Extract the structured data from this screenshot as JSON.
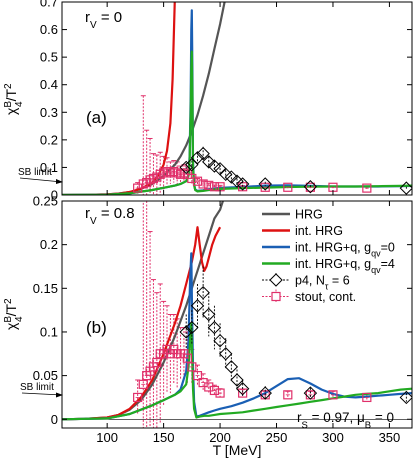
{
  "chart_data": [
    {
      "panel": "top",
      "type": "line",
      "tag": "(a)",
      "corner_label": {
        "main": "r",
        "sub": "V",
        "rest": " = 0"
      },
      "ylabel": {
        "main": "χ",
        "sub": "4",
        "sup": "B",
        "rest": "/T",
        "rest_sup": "2"
      },
      "ylim": [
        0,
        0.7
      ],
      "yticks": [
        "0",
        "0.1",
        "0.2",
        "0.3",
        "0.4",
        "0.5",
        "0.6",
        "0.7"
      ],
      "xlim": [
        60,
        370
      ],
      "sb_limit": {
        "label": "SB limit",
        "value": 0.0167
      },
      "series": [
        {
          "id": "hrg",
          "color": "#555555",
          "x": [
            60,
            80,
            100,
            110,
            120,
            130,
            140,
            150,
            160,
            165,
            170,
            175,
            180,
            185,
            190,
            195,
            200,
            205
          ],
          "y": [
            0,
            0.0005,
            0.002,
            0.005,
            0.011,
            0.022,
            0.04,
            0.07,
            0.11,
            0.14,
            0.18,
            0.23,
            0.29,
            0.36,
            0.44,
            0.53,
            0.62,
            0.72
          ]
        },
        {
          "id": "int-hrg",
          "color": "#dd1111",
          "x": [
            60,
            80,
            100,
            110,
            120,
            130,
            140,
            145,
            150,
            153,
            156,
            158,
            160
          ],
          "y": [
            0,
            0.0005,
            0.002,
            0.005,
            0.011,
            0.023,
            0.045,
            0.07,
            0.11,
            0.16,
            0.26,
            0.42,
            0.72
          ]
        },
        {
          "id": "int-hrg-q-0",
          "color": "#1a5fb4",
          "x": [
            60,
            100,
            120,
            140,
            150,
            160,
            165,
            170,
            172,
            173,
            174,
            174.5,
            175,
            175.5,
            176,
            177,
            178,
            180,
            185,
            190,
            200,
            220,
            240,
            260,
            280,
            300,
            320,
            340,
            360,
            370
          ],
          "y": [
            0,
            0.001,
            0.006,
            0.018,
            0.026,
            0.034,
            0.04,
            0.05,
            0.075,
            0.14,
            0.36,
            0.6,
            0.67,
            0.45,
            0.12,
            0.04,
            0.02,
            0.015,
            0.017,
            0.021,
            0.026,
            0.029,
            0.034,
            0.035,
            0.033,
            0.031,
            0.031,
            0.031,
            0.032,
            0.033
          ]
        },
        {
          "id": "int-hrg-q-4",
          "color": "#22aa22",
          "x": [
            60,
            100,
            120,
            140,
            150,
            160,
            165,
            170,
            172,
            173,
            174,
            174.5,
            175,
            175.5,
            176,
            177,
            178,
            180,
            185,
            190,
            200,
            220,
            240,
            260,
            280,
            300,
            320,
            340,
            360,
            370
          ],
          "y": [
            0,
            0.001,
            0.006,
            0.018,
            0.026,
            0.034,
            0.04,
            0.05,
            0.07,
            0.12,
            0.3,
            0.46,
            0.52,
            0.36,
            0.1,
            0.035,
            0.018,
            0.013,
            0.015,
            0.018,
            0.022,
            0.025,
            0.027,
            0.029,
            0.03,
            0.031,
            0.031,
            0.032,
            0.033,
            0.034
          ]
        }
      ],
      "p4": {
        "x": [
          170,
          175,
          180,
          185,
          190,
          195,
          200,
          205,
          210,
          215,
          220,
          240,
          280,
          365
        ],
        "y": [
          0.1,
          0.11,
          0.135,
          0.15,
          0.12,
          0.105,
          0.095,
          0.075,
          0.065,
          0.05,
          0.04,
          0.04,
          0.03,
          0.025
        ],
        "err": [
          0.015,
          0.015,
          0.02,
          0.025,
          0.02,
          0.02,
          0.015,
          0.015,
          0.012,
          0.01,
          0.01,
          0.008,
          0.006,
          0.005
        ]
      },
      "stout": {
        "x": [
          127,
          132,
          135,
          138,
          141,
          144,
          147,
          150,
          153,
          156,
          159,
          162,
          165,
          168,
          171,
          175,
          180,
          185,
          190,
          195,
          200,
          220,
          240,
          260,
          280,
          300,
          330
        ],
        "y": [
          0.025,
          0.04,
          0.045,
          0.055,
          0.06,
          0.065,
          0.075,
          0.08,
          0.085,
          0.08,
          0.085,
          0.08,
          0.075,
          0.08,
          0.075,
          0.06,
          0.05,
          0.04,
          0.035,
          0.03,
          0.03,
          0.03,
          0.028,
          0.028,
          0.028,
          0.028,
          0.025
        ],
        "err": [
          0.02,
          0.32,
          0.19,
          0.15,
          0.09,
          0.08,
          0.08,
          0.06,
          0.05,
          0.04,
          0.04,
          0.04,
          0.03,
          0.03,
          0.03,
          0.02,
          0.01,
          0.01,
          0.008,
          0.006,
          0.005,
          0.004,
          0.004,
          0.004,
          0.004,
          0.004,
          0.004
        ]
      }
    },
    {
      "panel": "bottom",
      "type": "line",
      "tag": "(b)",
      "corner_label": {
        "main": "r",
        "sub": "V",
        "rest": " = 0.8"
      },
      "ylabel": {
        "main": "χ",
        "sub": "4",
        "sup": "B",
        "rest": "/T",
        "rest_sup": "2"
      },
      "ylim": [
        -0.01,
        0.25
      ],
      "yticks": [
        "0",
        "0.05",
        "0.1",
        "0.15",
        "0.2",
        "0.25"
      ],
      "ytick_values": [
        0,
        0.05,
        0.1,
        0.15,
        0.2,
        0.25
      ],
      "xlim": [
        60,
        370
      ],
      "xticks": [
        "100",
        "150",
        "200",
        "250",
        "300",
        "350"
      ],
      "xtick_values": [
        100,
        150,
        200,
        250,
        300,
        350
      ],
      "xlabel": "T [MeV]",
      "sb_limit": {
        "label": "SB limit",
        "value": 0.0167
      },
      "note": {
        "rs": "r",
        "rs_sub": "S",
        "rs_rest": " = 0.97, ",
        "mu": "μ",
        "mu_sub": "B",
        "mu_rest": " = 0"
      },
      "legend": [
        {
          "key": "hrg",
          "label": "HRG",
          "style": "line",
          "color": "#555555"
        },
        {
          "key": "int-hrg",
          "label": "int. HRG",
          "style": "line",
          "color": "#dd1111"
        },
        {
          "key": "int-hrg-q-0",
          "label": "int. HRG+q, g",
          "sub": "qv",
          "rest": "=0",
          "style": "line",
          "color": "#1a5fb4"
        },
        {
          "key": "int-hrg-q-4",
          "label": "int. HRG+q, g",
          "sub": "qv",
          "rest": "=4",
          "style": "line",
          "color": "#22aa22"
        },
        {
          "key": "p4",
          "label": "p4, N",
          "sub": "τ",
          "rest": " = 6",
          "style": "diamond",
          "color": "#000000"
        },
        {
          "key": "stout",
          "label": "stout, cont.",
          "style": "square",
          "color": "#e0306a"
        }
      ],
      "series": [
        {
          "id": "hrg",
          "color": "#555555",
          "x": [
            60,
            80,
            100,
            110,
            120,
            130,
            140,
            150,
            160,
            170,
            175,
            180,
            185,
            190,
            195,
            200,
            205
          ],
          "y": [
            0,
            0.0005,
            0.002,
            0.005,
            0.011,
            0.022,
            0.04,
            0.065,
            0.095,
            0.13,
            0.15,
            0.17,
            0.19,
            0.21,
            0.23,
            0.24,
            0.26
          ]
        },
        {
          "id": "int-hrg",
          "color": "#dd1111",
          "x": [
            60,
            80,
            100,
            110,
            120,
            130,
            140,
            150,
            160,
            165,
            170,
            175,
            178,
            180,
            182,
            184,
            186,
            188,
            190,
            193,
            196,
            200
          ],
          "y": [
            0,
            0.0005,
            0.002,
            0.005,
            0.012,
            0.025,
            0.045,
            0.075,
            0.11,
            0.13,
            0.155,
            0.18,
            0.2,
            0.22,
            0.2,
            0.18,
            0.17,
            0.175,
            0.185,
            0.2,
            0.21,
            0.22
          ]
        },
        {
          "id": "int-hrg-q-0",
          "color": "#1a5fb4",
          "x": [
            60,
            100,
            120,
            140,
            150,
            160,
            165,
            170,
            172,
            173.5,
            174.5,
            175.2,
            176,
            177,
            179,
            182,
            186,
            190,
            195,
            200,
            210,
            220,
            230,
            240,
            250,
            260,
            270,
            280,
            290,
            300,
            310,
            320,
            330,
            340,
            350,
            360,
            370
          ],
          "y": [
            0,
            0.001,
            0.006,
            0.016,
            0.022,
            0.028,
            0.034,
            0.055,
            0.09,
            0.16,
            0.19,
            0.12,
            0.06,
            0.02,
            0.003,
            0.004,
            0.006,
            0.008,
            0.01,
            0.012,
            0.015,
            0.019,
            0.024,
            0.03,
            0.038,
            0.046,
            0.047,
            0.041,
            0.034,
            0.029,
            0.026,
            0.025,
            0.026,
            0.027,
            0.028,
            0.029,
            0.03
          ]
        },
        {
          "id": "int-hrg-q-4",
          "color": "#22aa22",
          "x": [
            60,
            100,
            120,
            140,
            150,
            160,
            165,
            170,
            172,
            173.5,
            174.5,
            175.2,
            176,
            177,
            179,
            182,
            186,
            190,
            195,
            200,
            210,
            220,
            230,
            240,
            250,
            260,
            270,
            280,
            290,
            300,
            310,
            320,
            330,
            340,
            350,
            360,
            370
          ],
          "y": [
            0,
            0.001,
            0.006,
            0.016,
            0.022,
            0.028,
            0.032,
            0.04,
            0.06,
            0.09,
            0.11,
            0.075,
            0.035,
            0.012,
            0.002,
            0.003,
            0.004,
            0.004,
            0.005,
            0.006,
            0.007,
            0.008,
            0.01,
            0.012,
            0.014,
            0.016,
            0.018,
            0.02,
            0.022,
            0.024,
            0.026,
            0.028,
            0.029,
            0.03,
            0.032,
            0.034,
            0.035
          ]
        }
      ],
      "p4": {
        "x": [
          170,
          175,
          180,
          185,
          190,
          195,
          200,
          205,
          210,
          215,
          220,
          240,
          280,
          365
        ],
        "y": [
          0.1,
          0.105,
          0.13,
          0.145,
          0.12,
          0.105,
          0.09,
          0.075,
          0.06,
          0.045,
          0.035,
          0.03,
          0.03,
          0.025
        ],
        "err": [
          0.02,
          0.02,
          0.025,
          0.03,
          0.025,
          0.025,
          0.02,
          0.018,
          0.015,
          0.012,
          0.01,
          0.008,
          0.006,
          0.005
        ]
      },
      "stout": {
        "x": [
          127,
          132,
          135,
          138,
          141,
          144,
          147,
          150,
          153,
          156,
          159,
          162,
          165,
          168,
          171,
          175,
          180,
          185,
          190,
          195,
          200,
          220,
          240,
          260,
          280,
          300,
          330
        ],
        "y": [
          0.025,
          0.04,
          0.05,
          0.055,
          0.06,
          0.065,
          0.075,
          0.075,
          0.08,
          0.075,
          0.08,
          0.075,
          0.075,
          0.075,
          0.07,
          0.06,
          0.05,
          0.042,
          0.037,
          0.033,
          0.03,
          0.03,
          0.028,
          0.028,
          0.028,
          0.028,
          0.025
        ],
        "err": [
          0.02,
          0.3,
          0.2,
          0.16,
          0.1,
          0.08,
          0.08,
          0.06,
          0.05,
          0.045,
          0.04,
          0.04,
          0.03,
          0.03,
          0.03,
          0.02,
          0.012,
          0.01,
          0.008,
          0.006,
          0.005,
          0.004,
          0.004,
          0.004,
          0.004,
          0.004,
          0.004
        ]
      }
    }
  ]
}
